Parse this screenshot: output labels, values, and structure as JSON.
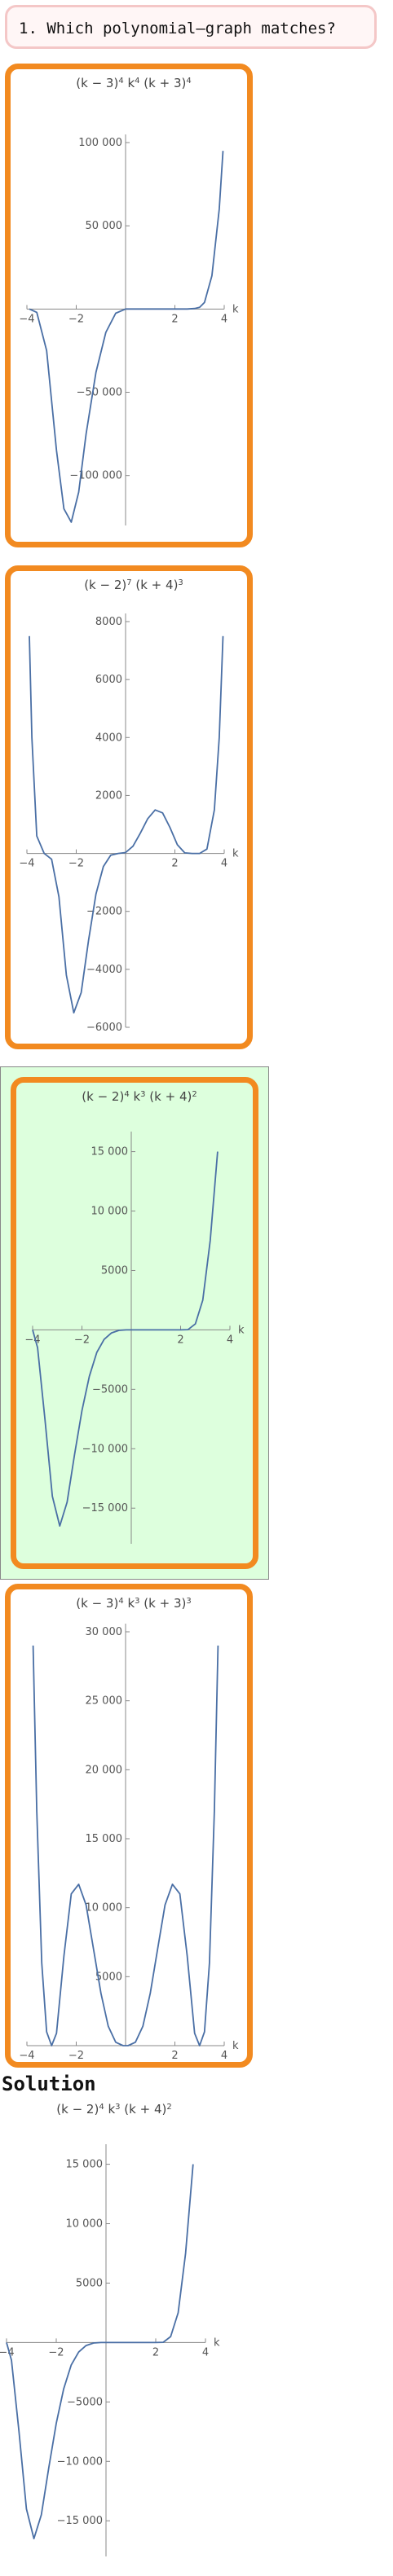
{
  "question": {
    "text": "1. Which polynomial–graph matches?"
  },
  "solution": {
    "heading": "Solution"
  },
  "colors": {
    "card_border": "#f28a20",
    "correct_bg": "#ddffdd",
    "question_border": "#f4c7c7",
    "curve": "#4a6fa5"
  },
  "chart_data": [
    {
      "type": "line",
      "id": "A",
      "title_parts": [
        "(k − 3)",
        "4",
        " k",
        "4",
        " (k + 3)",
        "4"
      ],
      "xlabel": "k",
      "xlim": [
        -4,
        4
      ],
      "ylim": [
        -130000,
        100000
      ],
      "xticks": [
        -4,
        -2,
        2,
        4
      ],
      "yticks": [
        100000,
        50000,
        -50000,
        -100000
      ],
      "ytick_labels": [
        "100 000",
        "50 000",
        "−50 000",
        "−100 000"
      ],
      "xtick_labels": [
        "−4",
        "−2",
        "2",
        "4"
      ],
      "series": [
        {
          "x": [
            -3.9,
            -3.6,
            -3.2,
            -2.8,
            -2.5,
            -2.2,
            -1.9,
            -1.6,
            -1.2,
            -0.8,
            -0.4,
            0,
            0.5,
            1,
            1.5,
            2,
            2.5,
            2.8,
            3,
            3.2,
            3.5,
            3.8,
            3.95
          ],
          "y": [
            0,
            -2000,
            -25000,
            -85000,
            -120000,
            -128000,
            -110000,
            -75000,
            -38000,
            -14000,
            -2500,
            0,
            0,
            0,
            0,
            0,
            0,
            300,
            1000,
            4000,
            20000,
            60000,
            95000
          ]
        }
      ]
    },
    {
      "type": "line",
      "id": "B",
      "title_parts": [
        "(k − 2)",
        "7",
        " (k + 4)",
        "3"
      ],
      "xlabel": "k",
      "xlim": [
        -4,
        4
      ],
      "ylim": [
        -6000,
        8000
      ],
      "xticks": [
        -4,
        -2,
        2,
        4
      ],
      "yticks": [
        8000,
        6000,
        4000,
        2000,
        -2000,
        -4000,
        -6000
      ],
      "ytick_labels": [
        "8000",
        "6000",
        "4000",
        "2000",
        "−2000",
        "−4000",
        "−6000"
      ],
      "xtick_labels": [
        "−4",
        "−2",
        "2",
        "4"
      ],
      "series": [
        {
          "x": [
            -3.9,
            -3.8,
            -3.6,
            -3.3,
            -3.0,
            -2.7,
            -2.4,
            -2.1,
            -1.8,
            -1.5,
            -1.2,
            -0.9,
            -0.6,
            -0.3,
            0,
            0.3,
            0.6,
            0.9,
            1.2,
            1.5,
            1.8,
            2.1,
            2.4,
            2.7,
            3.0,
            3.3,
            3.6,
            3.8,
            3.95
          ],
          "y": [
            7500,
            4000,
            600,
            0,
            -200,
            -1500,
            -4200,
            -5500,
            -4800,
            -3000,
            -1400,
            -450,
            -60,
            0,
            30,
            250,
            700,
            1200,
            1500,
            1400,
            900,
            300,
            20,
            0,
            0,
            150,
            1500,
            4000,
            7500
          ]
        }
      ]
    },
    {
      "type": "line",
      "id": "C",
      "title_parts": [
        "(k − 2)",
        "4",
        " k",
        "3",
        " (k + 4)",
        "2"
      ],
      "xlabel": "k",
      "xlim": [
        -4,
        4
      ],
      "ylim": [
        -18000,
        16000
      ],
      "xticks": [
        -4,
        -2,
        2,
        4
      ],
      "yticks": [
        15000,
        10000,
        5000,
        -5000,
        -10000,
        -15000
      ],
      "ytick_labels": [
        "15 000",
        "10 000",
        "5000",
        "−5000",
        "−10 000",
        "−15 000"
      ],
      "xtick_labels": [
        "−4",
        "−2",
        "2",
        "4"
      ],
      "series": [
        {
          "x": [
            -4.0,
            -3.8,
            -3.5,
            -3.2,
            -2.9,
            -2.6,
            -2.3,
            -2.0,
            -1.7,
            -1.4,
            -1.1,
            -0.8,
            -0.5,
            -0.2,
            0,
            0.5,
            1,
            1.5,
            2,
            2.3,
            2.6,
            2.9,
            3.2,
            3.5
          ],
          "y": [
            0,
            -1500,
            -7500,
            -14000,
            -16500,
            -14500,
            -10500,
            -6800,
            -3900,
            -1900,
            -800,
            -250,
            -40,
            0,
            0,
            0,
            0,
            0,
            0,
            20,
            500,
            2500,
            7500,
            15000
          ]
        }
      ]
    },
    {
      "type": "line",
      "id": "D",
      "title_parts": [
        "(k − 3)",
        "4",
        " k",
        "3",
        " (k + 3)",
        "3"
      ],
      "xlabel": "k",
      "xlim": [
        -4,
        4
      ],
      "ylim": [
        0,
        30000
      ],
      "xticks": [
        -4,
        -2,
        2,
        4
      ],
      "yticks": [
        30000,
        25000,
        20000,
        15000,
        10000,
        5000
      ],
      "ytick_labels": [
        "30 000",
        "25 000",
        "20 000",
        "15 000",
        "10 000",
        "5000"
      ],
      "xtick_labels": [
        "−4",
        "−2",
        "2",
        "4"
      ],
      "series": [
        {
          "x": [
            -3.75,
            -3.6,
            -3.4,
            -3.2,
            -3.0,
            -2.8,
            -2.5,
            -2.2,
            -1.9,
            -1.6,
            -1.3,
            -1.0,
            -0.7,
            -0.4,
            -0.1,
            0,
            0.1,
            0.4,
            0.7,
            1.0,
            1.3,
            1.6,
            1.9,
            2.2,
            2.5,
            2.8,
            3.0,
            3.2,
            3.4,
            3.6,
            3.75
          ],
          "y": [
            29000,
            17000,
            6000,
            1000,
            0,
            900,
            6500,
            11000,
            11700,
            10200,
            7000,
            3800,
            1400,
            250,
            0,
            0,
            0,
            250,
            1400,
            3800,
            7000,
            10200,
            11700,
            11000,
            6500,
            900,
            0,
            1000,
            6000,
            17000,
            29000
          ]
        }
      ]
    },
    {
      "type": "line",
      "id": "Solution",
      "title_parts": [
        "(k − 2)",
        "4",
        " k",
        "3",
        " (k + 4)",
        "2"
      ],
      "xlabel": "k",
      "xlim": [
        -4,
        4
      ],
      "ylim": [
        -18000,
        16000
      ],
      "xticks": [
        -4,
        -2,
        2,
        4
      ],
      "yticks": [
        15000,
        10000,
        5000,
        -5000,
        -10000,
        -15000
      ],
      "ytick_labels": [
        "15 000",
        "10 000",
        "5000",
        "−5000",
        "−10 000",
        "−15 000"
      ],
      "xtick_labels": [
        "−4",
        "−2",
        "2",
        "4"
      ],
      "series": [
        {
          "x": [
            -4.0,
            -3.8,
            -3.5,
            -3.2,
            -2.9,
            -2.6,
            -2.3,
            -2.0,
            -1.7,
            -1.4,
            -1.1,
            -0.8,
            -0.5,
            -0.2,
            0,
            0.5,
            1,
            1.5,
            2,
            2.3,
            2.6,
            2.9,
            3.2,
            3.5
          ],
          "y": [
            0,
            -1500,
            -7500,
            -14000,
            -16500,
            -14500,
            -10500,
            -6800,
            -3900,
            -1900,
            -800,
            -250,
            -40,
            0,
            0,
            0,
            0,
            0,
            0,
            20,
            500,
            2500,
            7500,
            15000
          ]
        }
      ]
    }
  ]
}
